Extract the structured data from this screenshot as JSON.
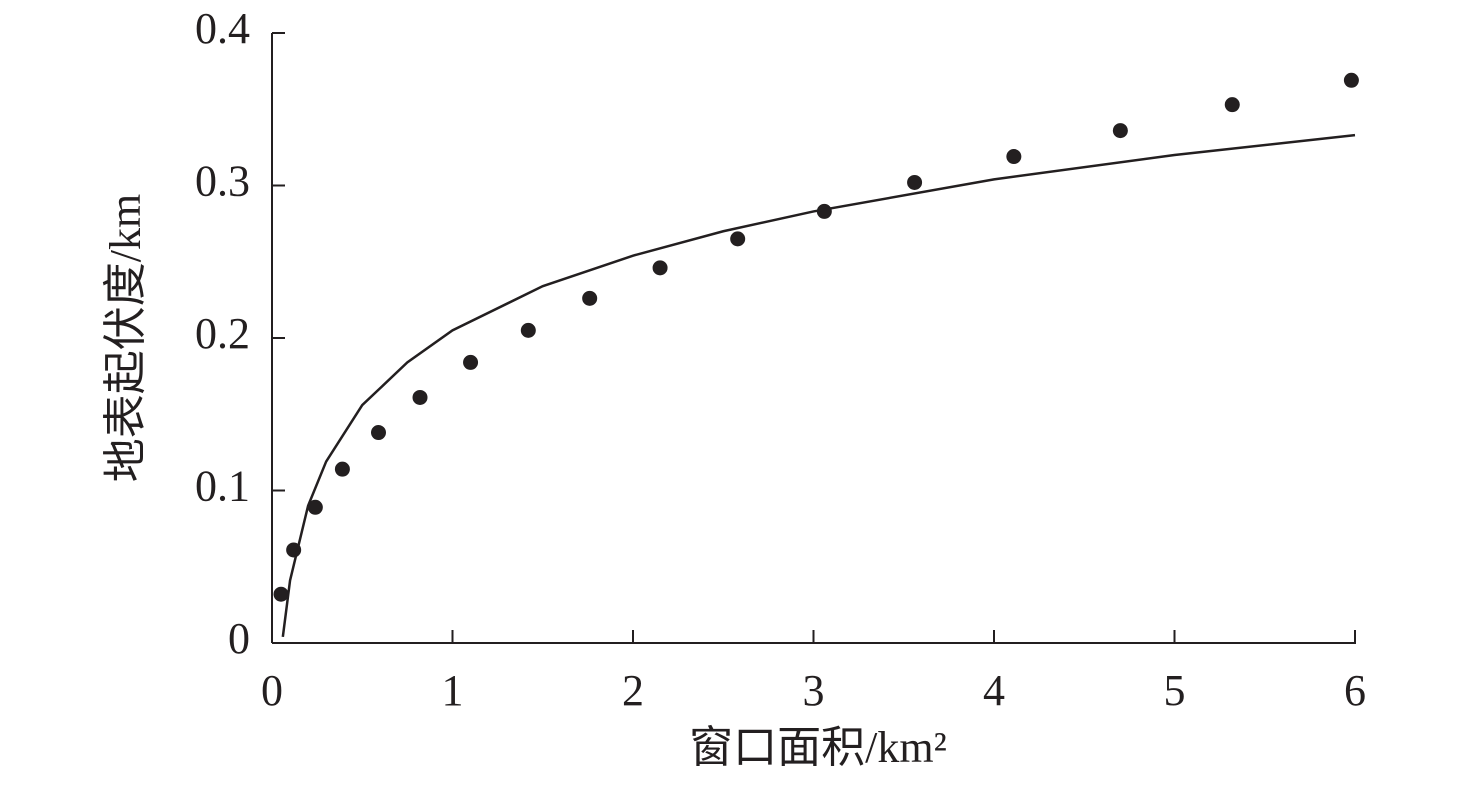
{
  "chart_data": {
    "type": "scatter",
    "xlabel": "窗口面积/km²",
    "ylabel": "地表起伏度/km",
    "xlim": [
      0,
      6
    ],
    "xticks": [
      0,
      1,
      2,
      3,
      4,
      5,
      6
    ],
    "ylim": [
      0,
      0.4
    ],
    "yticks": [
      0,
      0.1,
      0.2,
      0.3,
      0.4
    ],
    "series": [
      {
        "type": "scatter",
        "color": "#231f20",
        "x": [
          0.05,
          0.12,
          0.24,
          0.39,
          0.59,
          0.82,
          1.1,
          1.42,
          1.76,
          2.15,
          2.58,
          3.06,
          3.56,
          4.11,
          4.7,
          5.32,
          5.98
        ],
        "values": [
          0.032,
          0.061,
          0.089,
          0.114,
          0.138,
          0.161,
          0.184,
          0.205,
          0.226,
          0.246,
          0.265,
          0.283,
          0.302,
          0.319,
          0.336,
          0.353,
          0.369
        ]
      },
      {
        "type": "line",
        "color": "#231f20",
        "x": [
          0.06,
          0.1,
          0.2,
          0.3,
          0.5,
          0.75,
          1,
          1.5,
          2,
          2.5,
          3,
          4,
          5,
          6
        ],
        "values": [
          0.004,
          0.041,
          0.09,
          0.119,
          0.156,
          0.184,
          0.205,
          0.234,
          0.254,
          0.27,
          0.283,
          0.304,
          0.32,
          0.333
        ]
      }
    ]
  }
}
